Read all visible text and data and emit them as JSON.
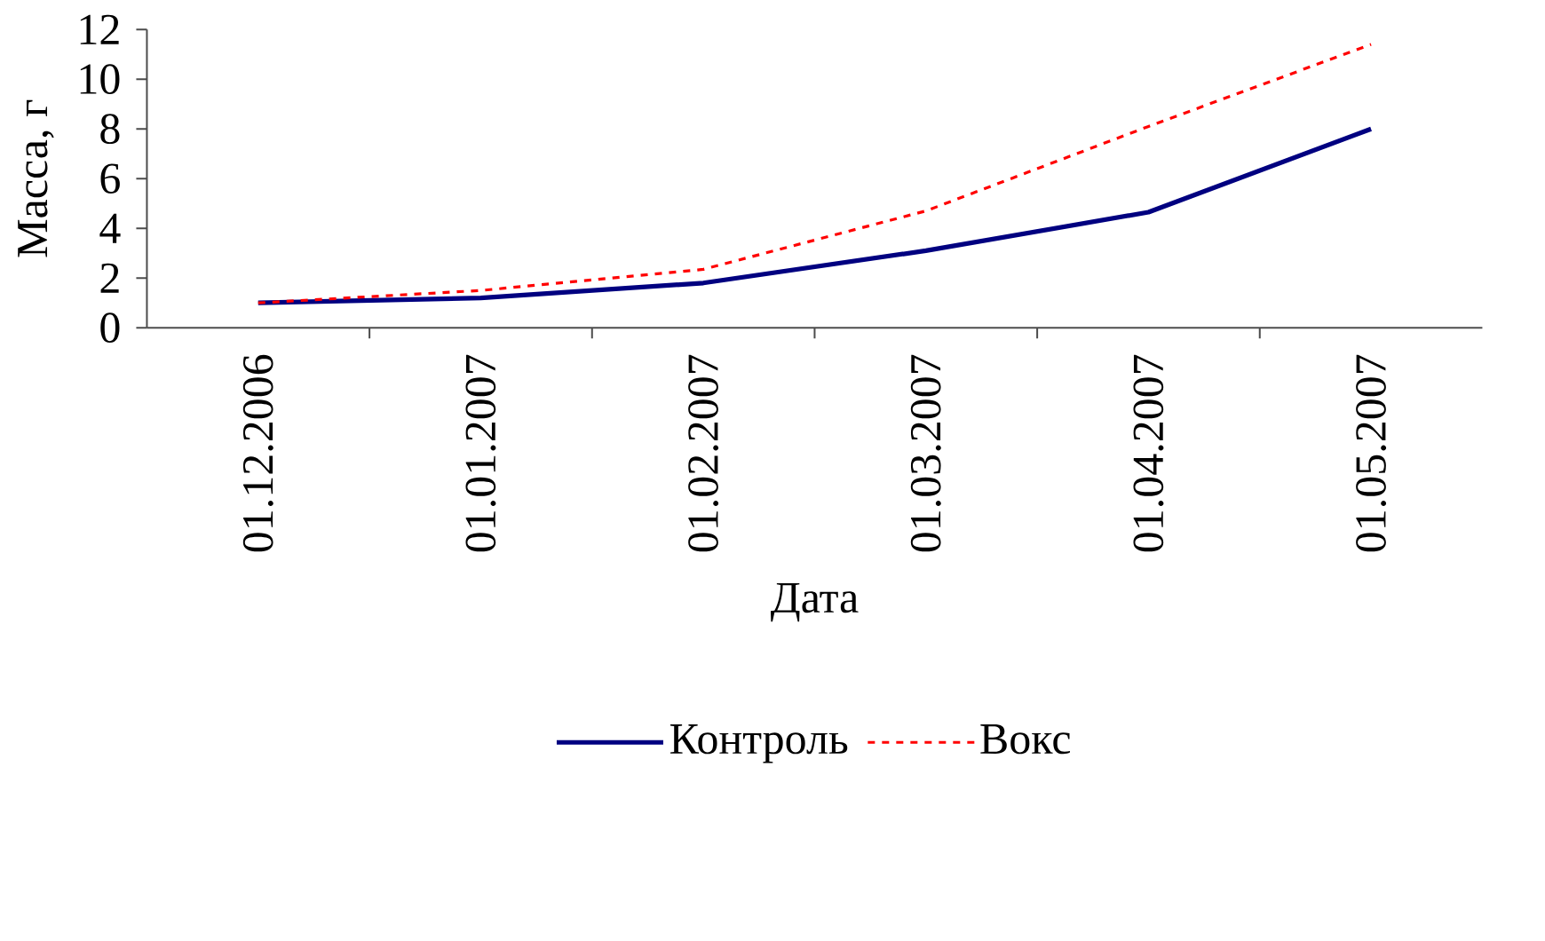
{
  "chart_data": {
    "type": "line",
    "xlabel": "Дата",
    "ylabel": "Масса, г",
    "categories": [
      "01.12.2006",
      "01.01.2007",
      "01.02.2007",
      "01.03.2007",
      "01.04.2007",
      "01.05.2007"
    ],
    "series": [
      {
        "name": "Контроль",
        "color": "#000080",
        "line_style": "solid",
        "values": [
          1.0,
          1.2,
          1.8,
          3.1,
          4.65,
          8.0
        ]
      },
      {
        "name": "Вокс",
        "color": "#ff0000",
        "line_style": "dashed",
        "values": [
          1.0,
          1.5,
          2.35,
          4.7,
          8.1,
          11.4
        ]
      }
    ],
    "ylim": [
      0,
      12
    ],
    "yticks": [
      0,
      2,
      4,
      6,
      8,
      10,
      12
    ],
    "legend": "bottom"
  }
}
